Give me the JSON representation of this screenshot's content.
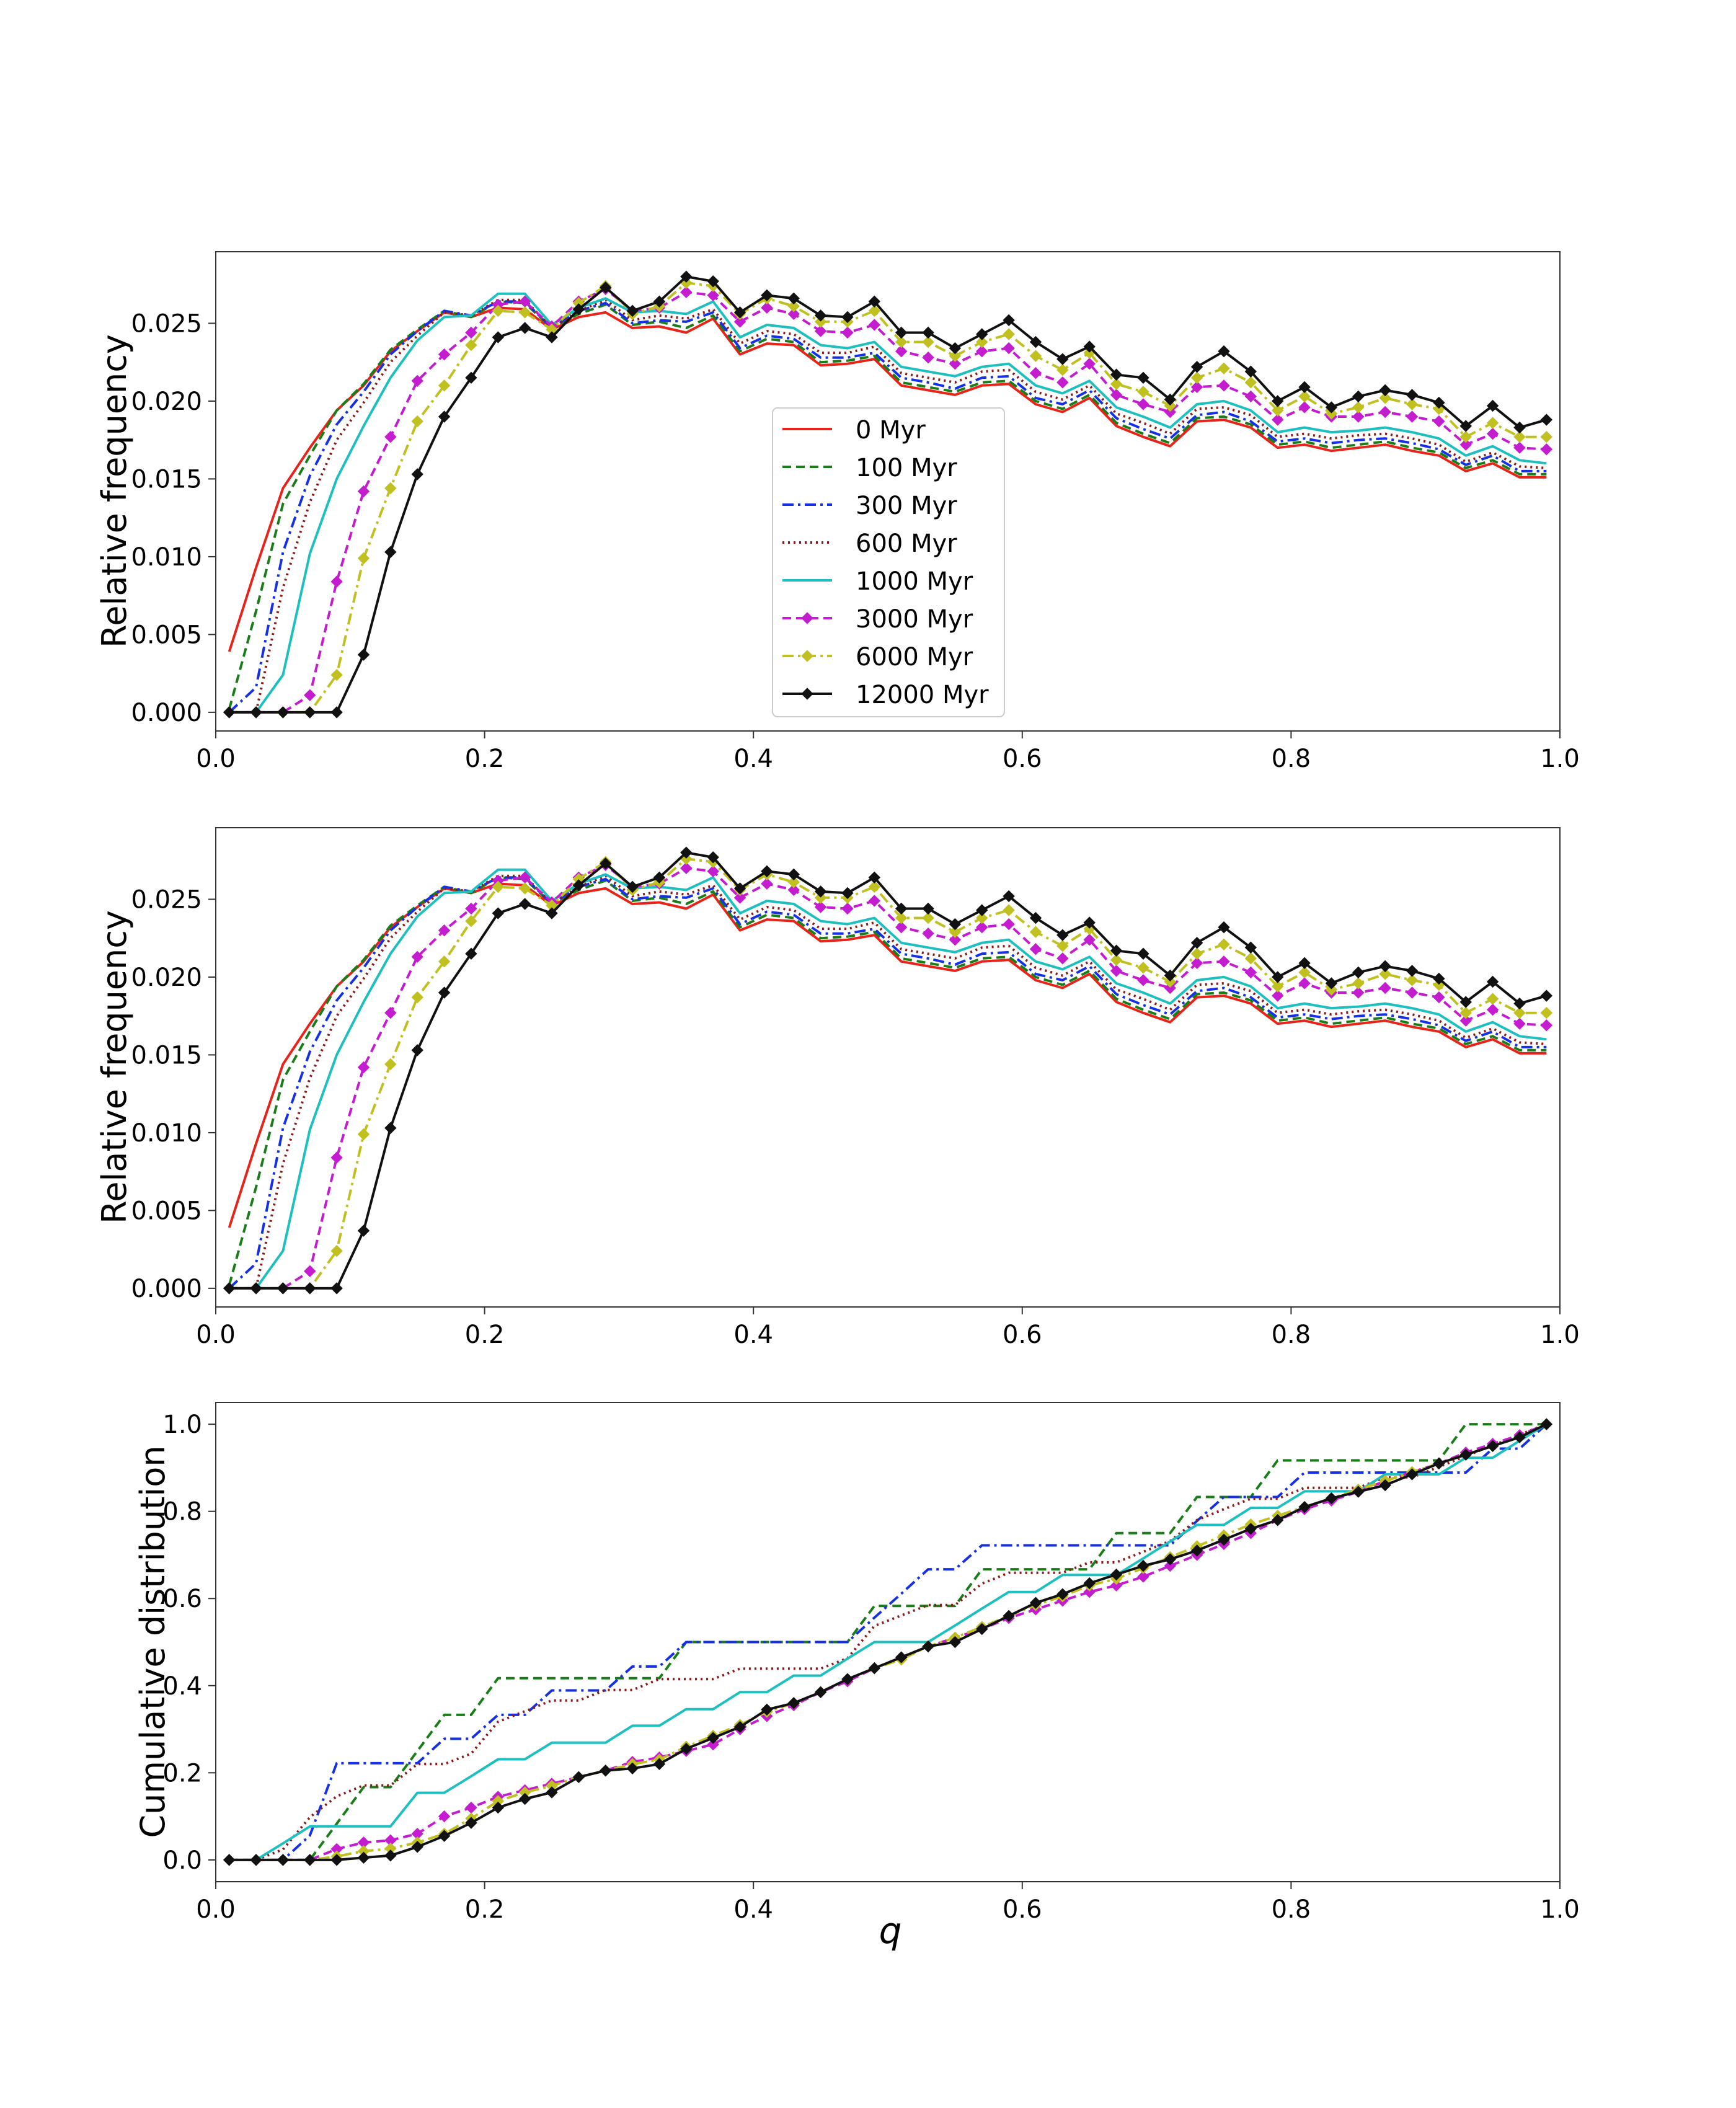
{
  "chart_data": [
    {
      "type": "line",
      "panel": "top",
      "title": "",
      "xlabel": "",
      "ylabel": "Relative frequency",
      "xlim": [
        0.0,
        1.0
      ],
      "ylim": [
        -0.0012,
        0.0296
      ],
      "xticks": [
        "0.0",
        "0.2",
        "0.4",
        "0.6",
        "0.8",
        "1.0"
      ],
      "yticks": [
        "0.000",
        "0.005",
        "0.010",
        "0.015",
        "0.020",
        "0.025"
      ],
      "legend": {
        "placement": "center",
        "entries": [
          "0 Myr",
          "100 Myr",
          "300 Myr",
          "600 Myr",
          "1000 Myr",
          "3000 Myr",
          "6000 Myr",
          "12000 Myr"
        ]
      },
      "x": [
        0.01,
        0.03,
        0.05,
        0.07,
        0.09,
        0.11,
        0.13,
        0.15,
        0.17,
        0.19,
        0.21,
        0.23,
        0.25,
        0.27,
        0.29,
        0.31,
        0.33,
        0.35,
        0.37,
        0.39,
        0.41,
        0.43,
        0.45,
        0.47,
        0.49,
        0.51,
        0.53,
        0.55,
        0.57,
        0.59,
        0.61,
        0.63,
        0.65,
        0.67,
        0.69,
        0.71,
        0.73,
        0.75,
        0.77,
        0.79,
        0.81,
        0.83,
        0.85,
        0.87,
        0.89,
        0.91,
        0.93,
        0.95,
        0.97,
        0.99
      ],
      "series": [
        {
          "name": "0 Myr",
          "values": [
            0.0039,
            0.0093,
            0.0144,
            0.017,
            0.0194,
            0.021,
            0.0232,
            0.0245,
            0.0257,
            0.0254,
            0.026,
            0.0259,
            0.0246,
            0.0254,
            0.0257,
            0.0247,
            0.0248,
            0.0244,
            0.0253,
            0.023,
            0.0237,
            0.0236,
            0.0223,
            0.0224,
            0.0227,
            0.021,
            0.0207,
            0.0204,
            0.021,
            0.0211,
            0.0198,
            0.0193,
            0.0202,
            0.0184,
            0.0177,
            0.0171,
            0.0187,
            0.0188,
            0.0183,
            0.017,
            0.0172,
            0.0168,
            0.017,
            0.0172,
            0.0168,
            0.0165,
            0.0155,
            0.016,
            0.0151,
            0.0151
          ]
        },
        {
          "name": "100 Myr",
          "values": [
            0.0002,
            0.0065,
            0.0134,
            0.0165,
            0.0194,
            0.0211,
            0.0233,
            0.0246,
            0.0258,
            0.0254,
            0.0264,
            0.0263,
            0.0247,
            0.0256,
            0.0262,
            0.0249,
            0.0251,
            0.0247,
            0.0255,
            0.0232,
            0.024,
            0.0238,
            0.0225,
            0.0226,
            0.0229,
            0.0212,
            0.0209,
            0.0206,
            0.0212,
            0.0213,
            0.02,
            0.0195,
            0.0204,
            0.0186,
            0.0179,
            0.0173,
            0.0189,
            0.019,
            0.0185,
            0.0172,
            0.0174,
            0.017,
            0.0172,
            0.0174,
            0.017,
            0.0167,
            0.0157,
            0.0162,
            0.0153,
            0.0153
          ]
        },
        {
          "name": "300 Myr",
          "values": [
            0.0,
            0.0016,
            0.0103,
            0.0152,
            0.0185,
            0.0206,
            0.023,
            0.0245,
            0.0258,
            0.0255,
            0.0264,
            0.0264,
            0.0247,
            0.0258,
            0.0263,
            0.025,
            0.0252,
            0.0251,
            0.0257,
            0.0234,
            0.0242,
            0.024,
            0.0228,
            0.0228,
            0.0231,
            0.0215,
            0.0212,
            0.0208,
            0.0215,
            0.0216,
            0.0202,
            0.0198,
            0.0207,
            0.0189,
            0.0182,
            0.0176,
            0.0191,
            0.0193,
            0.0187,
            0.0174,
            0.0176,
            0.0173,
            0.0175,
            0.0176,
            0.0173,
            0.0169,
            0.0159,
            0.0165,
            0.0155,
            0.0155
          ]
        },
        {
          "name": "600 Myr",
          "values": [
            0.0,
            0.0,
            0.008,
            0.0135,
            0.0175,
            0.0199,
            0.0225,
            0.0242,
            0.0257,
            0.0255,
            0.0265,
            0.0265,
            0.0247,
            0.0258,
            0.0265,
            0.0252,
            0.0255,
            0.0253,
            0.0259,
            0.0237,
            0.0245,
            0.0243,
            0.0231,
            0.0231,
            0.0235,
            0.0218,
            0.0215,
            0.0212,
            0.0219,
            0.022,
            0.0206,
            0.0201,
            0.021,
            0.0192,
            0.0186,
            0.0179,
            0.0195,
            0.0196,
            0.0191,
            0.0177,
            0.0179,
            0.0176,
            0.0178,
            0.0179,
            0.0176,
            0.0172,
            0.0161,
            0.0167,
            0.0158,
            0.0157
          ]
        },
        {
          "name": "1000 Myr",
          "values": [
            0.0,
            0.0,
            0.0024,
            0.0102,
            0.015,
            0.0184,
            0.0215,
            0.0239,
            0.0254,
            0.0255,
            0.0269,
            0.0269,
            0.0249,
            0.026,
            0.0266,
            0.0257,
            0.0258,
            0.0256,
            0.0264,
            0.0241,
            0.0249,
            0.0247,
            0.0236,
            0.0234,
            0.0238,
            0.0222,
            0.0219,
            0.0216,
            0.0222,
            0.0224,
            0.021,
            0.0205,
            0.0213,
            0.0196,
            0.019,
            0.0183,
            0.0198,
            0.02,
            0.0194,
            0.018,
            0.0183,
            0.018,
            0.0181,
            0.0183,
            0.018,
            0.0176,
            0.0165,
            0.0171,
            0.0162,
            0.016
          ]
        },
        {
          "name": "3000 Myr",
          "values": [
            0.0,
            0.0,
            0.0,
            0.0011,
            0.0084,
            0.0142,
            0.0177,
            0.0213,
            0.023,
            0.0244,
            0.0262,
            0.0264,
            0.0248,
            0.0264,
            0.0272,
            0.0258,
            0.026,
            0.027,
            0.0268,
            0.0251,
            0.026,
            0.0256,
            0.0245,
            0.0244,
            0.0249,
            0.0232,
            0.0228,
            0.0224,
            0.0232,
            0.0234,
            0.0218,
            0.0212,
            0.0224,
            0.0204,
            0.0198,
            0.0193,
            0.0209,
            0.021,
            0.0203,
            0.0188,
            0.0196,
            0.019,
            0.019,
            0.0193,
            0.019,
            0.0187,
            0.0172,
            0.0179,
            0.017,
            0.0169
          ]
        },
        {
          "name": "6000 Myr",
          "values": [
            0.0,
            0.0,
            0.0,
            0.0,
            0.0024,
            0.0099,
            0.0144,
            0.0187,
            0.021,
            0.0236,
            0.0258,
            0.0257,
            0.0246,
            0.0263,
            0.0274,
            0.0256,
            0.0261,
            0.0276,
            0.0274,
            0.0256,
            0.0266,
            0.0261,
            0.0251,
            0.0251,
            0.0258,
            0.0238,
            0.0238,
            0.0229,
            0.0238,
            0.0243,
            0.0229,
            0.022,
            0.0231,
            0.0211,
            0.0206,
            0.0197,
            0.0215,
            0.0221,
            0.0212,
            0.0194,
            0.0203,
            0.0192,
            0.0196,
            0.0202,
            0.0198,
            0.0195,
            0.0177,
            0.0186,
            0.0177,
            0.0177
          ]
        },
        {
          "name": "12000 Myr",
          "values": [
            0.0,
            0.0,
            0.0,
            0.0,
            0.0,
            0.0037,
            0.0103,
            0.0153,
            0.019,
            0.0215,
            0.0241,
            0.0247,
            0.0241,
            0.0259,
            0.0273,
            0.0258,
            0.0264,
            0.028,
            0.0277,
            0.0257,
            0.0268,
            0.0266,
            0.0255,
            0.0254,
            0.0264,
            0.0244,
            0.0244,
            0.0234,
            0.0243,
            0.0252,
            0.0238,
            0.0227,
            0.0235,
            0.0217,
            0.0215,
            0.0201,
            0.0222,
            0.0232,
            0.0219,
            0.02,
            0.0209,
            0.0196,
            0.0203,
            0.0207,
            0.0204,
            0.0199,
            0.0184,
            0.0197,
            0.0183,
            0.0188
          ]
        }
      ]
    },
    {
      "type": "line",
      "panel": "middle",
      "title": "",
      "xlabel": "",
      "ylabel": "Relative frequency",
      "xlim": [
        0.0,
        1.0
      ],
      "ylim": [
        -0.0012,
        0.0296
      ],
      "xticks": [
        "0.0",
        "0.2",
        "0.4",
        "0.6",
        "0.8",
        "1.0"
      ],
      "yticks": [
        "0.000",
        "0.005",
        "0.010",
        "0.015",
        "0.020",
        "0.025"
      ],
      "same_series_as_panel": 0
    },
    {
      "type": "line",
      "panel": "bottom",
      "title": "",
      "xlabel": "q",
      "ylabel": "Cumulative distribution",
      "xlim": [
        0.0,
        1.0
      ],
      "ylim": [
        -0.05,
        1.05
      ],
      "xticks": [
        "0.0",
        "0.2",
        "0.4",
        "0.6",
        "0.8",
        "1.0"
      ],
      "yticks": [
        "0.0",
        "0.2",
        "0.4",
        "0.6",
        "0.8",
        "1.0"
      ],
      "x": [
        0.01,
        0.03,
        0.05,
        0.07,
        0.09,
        0.11,
        0.13,
        0.15,
        0.17,
        0.19,
        0.21,
        0.23,
        0.25,
        0.27,
        0.29,
        0.31,
        0.33,
        0.35,
        0.37,
        0.39,
        0.41,
        0.43,
        0.45,
        0.47,
        0.49,
        0.51,
        0.53,
        0.55,
        0.57,
        0.59,
        0.61,
        0.63,
        0.65,
        0.67,
        0.69,
        0.71,
        0.73,
        0.75,
        0.77,
        0.79,
        0.81,
        0.83,
        0.85,
        0.87,
        0.89,
        0.91,
        0.93,
        0.95,
        0.97,
        0.99
      ],
      "series": [
        {
          "name": "100 Myr",
          "values": [
            0,
            0,
            0,
            0,
            0.083,
            0.167,
            0.167,
            0.25,
            0.333,
            0.333,
            0.417,
            0.417,
            0.417,
            0.417,
            0.417,
            0.417,
            0.417,
            0.5,
            0.5,
            0.5,
            0.5,
            0.5,
            0.5,
            0.5,
            0.583,
            0.583,
            0.583,
            0.583,
            0.667,
            0.667,
            0.667,
            0.667,
            0.667,
            0.75,
            0.75,
            0.75,
            0.833,
            0.833,
            0.833,
            0.917,
            0.917,
            0.917,
            0.917,
            0.917,
            0.917,
            0.917,
            1.0,
            1.0,
            1.0,
            1.0
          ]
        },
        {
          "name": "300 Myr",
          "values": [
            0,
            0,
            0,
            0.056,
            0.222,
            0.222,
            0.222,
            0.222,
            0.278,
            0.278,
            0.333,
            0.333,
            0.389,
            0.389,
            0.389,
            0.444,
            0.444,
            0.5,
            0.5,
            0.5,
            0.5,
            0.5,
            0.5,
            0.5,
            0.556,
            0.611,
            0.667,
            0.667,
            0.722,
            0.722,
            0.722,
            0.722,
            0.722,
            0.722,
            0.722,
            0.722,
            0.778,
            0.833,
            0.833,
            0.833,
            0.889,
            0.889,
            0.889,
            0.889,
            0.889,
            0.889,
            0.889,
            0.944,
            0.944,
            1.0
          ]
        },
        {
          "name": "600 Myr",
          "values": [
            0,
            0,
            0.024,
            0.098,
            0.146,
            0.171,
            0.171,
            0.22,
            0.22,
            0.244,
            0.317,
            0.341,
            0.366,
            0.366,
            0.39,
            0.39,
            0.415,
            0.415,
            0.415,
            0.439,
            0.439,
            0.439,
            0.439,
            0.463,
            0.537,
            0.561,
            0.585,
            0.585,
            0.634,
            0.659,
            0.659,
            0.659,
            0.683,
            0.683,
            0.707,
            0.732,
            0.78,
            0.805,
            0.829,
            0.829,
            0.854,
            0.854,
            0.854,
            0.878,
            0.878,
            0.902,
            0.927,
            0.951,
            0.976,
            1.0
          ]
        },
        {
          "name": "1000 Myr",
          "values": [
            0,
            0,
            0.038,
            0.077,
            0.077,
            0.077,
            0.077,
            0.154,
            0.154,
            0.192,
            0.231,
            0.231,
            0.269,
            0.269,
            0.269,
            0.308,
            0.308,
            0.346,
            0.346,
            0.385,
            0.385,
            0.423,
            0.423,
            0.462,
            0.5,
            0.5,
            0.5,
            0.538,
            0.577,
            0.615,
            0.615,
            0.654,
            0.654,
            0.654,
            0.692,
            0.731,
            0.769,
            0.769,
            0.808,
            0.808,
            0.846,
            0.846,
            0.846,
            0.885,
            0.885,
            0.885,
            0.923,
            0.923,
            0.962,
            1.0
          ]
        },
        {
          "name": "3000 Myr",
          "values": [
            0,
            0,
            0,
            0,
            0.025,
            0.04,
            0.045,
            0.06,
            0.1,
            0.12,
            0.145,
            0.16,
            0.175,
            0.19,
            0.205,
            0.225,
            0.235,
            0.25,
            0.265,
            0.3,
            0.33,
            0.355,
            0.385,
            0.41,
            0.44,
            0.465,
            0.49,
            0.51,
            0.53,
            0.555,
            0.575,
            0.595,
            0.615,
            0.63,
            0.65,
            0.675,
            0.7,
            0.725,
            0.75,
            0.78,
            0.805,
            0.825,
            0.845,
            0.87,
            0.89,
            0.91,
            0.935,
            0.955,
            0.975,
            1.0
          ]
        },
        {
          "name": "6000 Myr",
          "values": [
            0,
            0,
            0,
            0,
            0.008,
            0.02,
            0.026,
            0.04,
            0.06,
            0.095,
            0.135,
            0.155,
            0.17,
            0.19,
            0.205,
            0.22,
            0.23,
            0.26,
            0.285,
            0.31,
            0.34,
            0.36,
            0.385,
            0.415,
            0.44,
            0.46,
            0.49,
            0.51,
            0.535,
            0.56,
            0.585,
            0.605,
            0.63,
            0.645,
            0.67,
            0.695,
            0.72,
            0.745,
            0.77,
            0.79,
            0.81,
            0.83,
            0.85,
            0.87,
            0.89,
            0.91,
            0.93,
            0.95,
            0.97,
            1.0
          ]
        },
        {
          "name": "12000 Myr",
          "values": [
            0,
            0,
            0,
            0,
            0,
            0.005,
            0.01,
            0.03,
            0.055,
            0.085,
            0.12,
            0.14,
            0.155,
            0.19,
            0.205,
            0.21,
            0.22,
            0.255,
            0.28,
            0.305,
            0.345,
            0.36,
            0.385,
            0.415,
            0.44,
            0.465,
            0.49,
            0.5,
            0.53,
            0.56,
            0.59,
            0.61,
            0.635,
            0.655,
            0.675,
            0.69,
            0.71,
            0.735,
            0.76,
            0.78,
            0.81,
            0.83,
            0.845,
            0.86,
            0.885,
            0.91,
            0.93,
            0.95,
            0.97,
            1.0
          ]
        }
      ]
    }
  ],
  "series_styles": [
    {
      "name": "0 Myr",
      "color": "#e8231a",
      "dash": "",
      "marker": "none"
    },
    {
      "name": "100 Myr",
      "color": "#1a7d1a",
      "dash": "14,8",
      "marker": "none"
    },
    {
      "name": "300 Myr",
      "color": "#1530e6",
      "dash": "18,7,4,7",
      "marker": "none"
    },
    {
      "name": "600 Myr",
      "color": "#8b1a1a",
      "dash": "3,6",
      "marker": "none"
    },
    {
      "name": "1000 Myr",
      "color": "#1ebfbf",
      "dash": "",
      "marker": "none"
    },
    {
      "name": "3000 Myr",
      "color": "#c41ccf",
      "dash": "14,8",
      "marker": "diamond"
    },
    {
      "name": "6000 Myr",
      "color": "#c0c020",
      "dash": "18,7,4,7",
      "marker": "diamond"
    },
    {
      "name": "12000 Myr",
      "color": "#111111",
      "dash": "",
      "marker": "diamond"
    }
  ]
}
